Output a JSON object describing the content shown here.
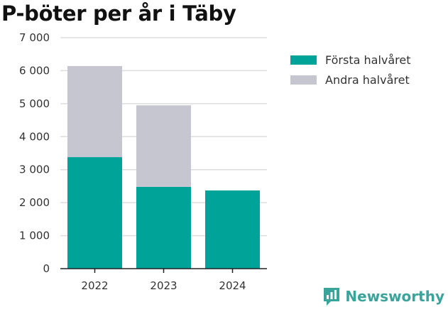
{
  "title": "P-böter per år i Täby",
  "brand": {
    "name": "Newsworthy",
    "icon": "newsworthy-logo-icon",
    "color": "#3aa39a"
  },
  "colors": {
    "first_half": "#00a398",
    "second_half": "#c6c6d0",
    "grid": "#dddddd",
    "axis": "#222222"
  },
  "y_tick_labels": [
    "0",
    "1 000",
    "2 000",
    "3 000",
    "4 000",
    "5 000",
    "6 000",
    "7 000"
  ],
  "chart_data": {
    "type": "bar",
    "stacked": true,
    "title": "P-böter per år i Täby",
    "categories": [
      "2022",
      "2023",
      "2024"
    ],
    "series": [
      {
        "name": "Första halvåret",
        "values": [
          3380,
          2480,
          2370
        ]
      },
      {
        "name": "Andra halvåret",
        "values": [
          2760,
          2470,
          0
        ]
      }
    ],
    "ylim": [
      0,
      7000
    ],
    "yticks": [
      0,
      1000,
      2000,
      3000,
      4000,
      5000,
      6000,
      7000
    ],
    "grid": true,
    "legend_position": "right"
  }
}
